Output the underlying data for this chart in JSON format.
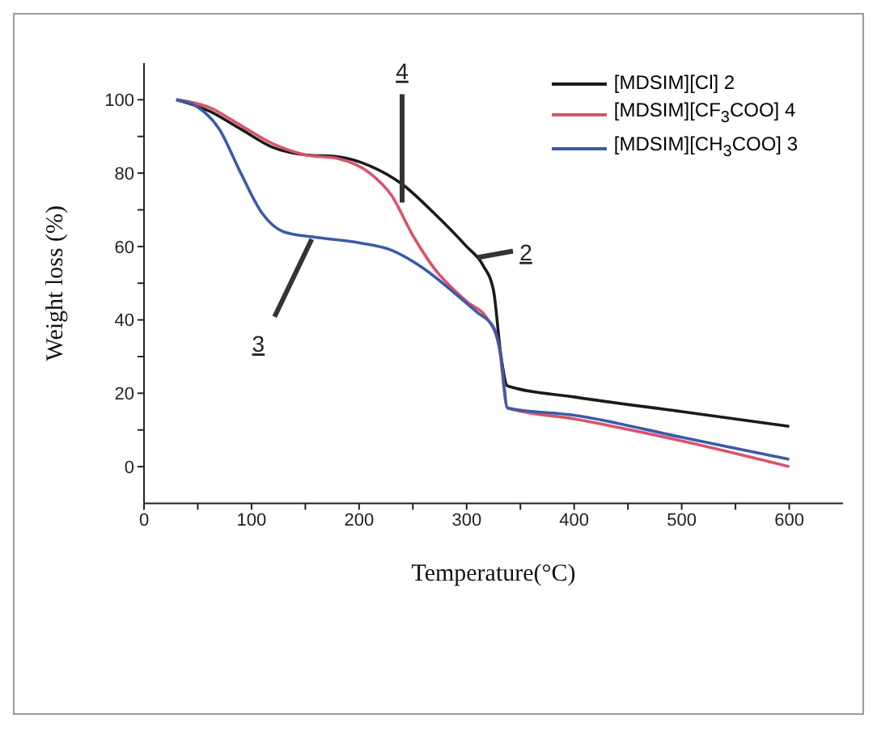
{
  "chart_data": {
    "type": "line",
    "xlabel": "Temperature(°C)",
    "ylabel": "Weight loss (%)",
    "xlim": [
      0,
      650
    ],
    "xticks": [
      0,
      {
        "value": 50,
        "label": null
      },
      100,
      {
        "value": 150,
        "label": null
      },
      200,
      {
        "value": 250,
        "label": null
      },
      300,
      {
        "value": 350,
        "label": null
      },
      400,
      {
        "value": 450,
        "label": null
      },
      500,
      {
        "value": 550,
        "label": null
      },
      600
    ],
    "ylim": [
      -10,
      110
    ],
    "yticks": [
      0,
      {
        "value": 10,
        "label": null
      },
      20,
      {
        "value": 30,
        "label": null
      },
      40,
      {
        "value": 50,
        "label": null
      },
      60,
      {
        "value": 70,
        "label": null
      },
      80,
      {
        "value": 90,
        "label": null
      },
      100
    ],
    "legend": "top right",
    "marker": "none",
    "line_style": "solid",
    "series": [
      {
        "name": "[MDSIM][Cl] 2",
        "color": "#1a1a1a",
        "x": [
          30,
          60,
          90,
          120,
          150,
          180,
          210,
          240,
          270,
          300,
          315,
          325,
          332,
          338,
          400,
          500,
          600
        ],
        "values": [
          100,
          97,
          92,
          87,
          85,
          84.5,
          82,
          77,
          69,
          60,
          55,
          48,
          30,
          22,
          19,
          15,
          11
        ]
      },
      {
        "name": "[MDSIM][CF$_{3}$COO] 4",
        "color": "#d9536a",
        "x": [
          30,
          60,
          90,
          120,
          150,
          180,
          210,
          230,
          250,
          270,
          300,
          320,
          330,
          338,
          400,
          500,
          600
        ],
        "values": [
          100,
          98,
          93,
          88,
          85,
          84,
          80,
          74,
          63,
          54,
          45,
          40,
          33,
          16,
          13,
          7,
          0
        ]
      },
      {
        "name": "[MDSIM][CH$_{3}$COO] 3",
        "color": "#3a5ba8",
        "x": [
          30,
          50,
          70,
          90,
          110,
          130,
          160,
          200,
          230,
          260,
          290,
          310,
          325,
          332,
          338,
          400,
          500,
          600
        ],
        "values": [
          100,
          98,
          92,
          80,
          69,
          64,
          62.5,
          61,
          59,
          54,
          47,
          42,
          38,
          30,
          16,
          14,
          8,
          2
        ]
      }
    ],
    "annotations": [
      {
        "text": "4",
        "x": 240,
        "y": 72
      },
      {
        "text": "2",
        "x": 310,
        "y": 57
      },
      {
        "text": "3",
        "x": 156,
        "y": 62
      }
    ]
  }
}
